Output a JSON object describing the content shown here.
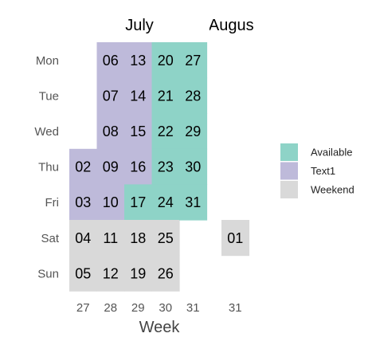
{
  "chart_data": {
    "type": "heatmap",
    "title": "",
    "xlabel": "Week",
    "ylabel": "",
    "months": [
      {
        "label": "July",
        "weeks": [
          27,
          28,
          29,
          30,
          31
        ]
      },
      {
        "label": "August",
        "weeks": [
          31
        ]
      }
    ],
    "weekdays": [
      "Mon",
      "Tue",
      "Wed",
      "Thu",
      "Fri",
      "Sat",
      "Sun"
    ],
    "categories": [
      {
        "name": "Available",
        "color": "#8ed3c7"
      },
      {
        "name": "Text1",
        "color": "#bebada"
      },
      {
        "name": "Weekend",
        "color": "#d9d9d9"
      }
    ],
    "cells": [
      {
        "month": 0,
        "week": 27,
        "day": "Thu",
        "label": "02",
        "category": "Text1"
      },
      {
        "month": 0,
        "week": 27,
        "day": "Fri",
        "label": "03",
        "category": "Text1"
      },
      {
        "month": 0,
        "week": 27,
        "day": "Sat",
        "label": "04",
        "category": "Weekend"
      },
      {
        "month": 0,
        "week": 27,
        "day": "Sun",
        "label": "05",
        "category": "Weekend"
      },
      {
        "month": 0,
        "week": 28,
        "day": "Mon",
        "label": "06",
        "category": "Text1"
      },
      {
        "month": 0,
        "week": 28,
        "day": "Tue",
        "label": "07",
        "category": "Text1"
      },
      {
        "month": 0,
        "week": 28,
        "day": "Wed",
        "label": "08",
        "category": "Text1"
      },
      {
        "month": 0,
        "week": 28,
        "day": "Thu",
        "label": "09",
        "category": "Text1"
      },
      {
        "month": 0,
        "week": 28,
        "day": "Fri",
        "label": "10",
        "category": "Text1"
      },
      {
        "month": 0,
        "week": 28,
        "day": "Sat",
        "label": "11",
        "category": "Weekend"
      },
      {
        "month": 0,
        "week": 28,
        "day": "Sun",
        "label": "12",
        "category": "Weekend"
      },
      {
        "month": 0,
        "week": 29,
        "day": "Mon",
        "label": "13",
        "category": "Text1"
      },
      {
        "month": 0,
        "week": 29,
        "day": "Tue",
        "label": "14",
        "category": "Text1"
      },
      {
        "month": 0,
        "week": 29,
        "day": "Wed",
        "label": "15",
        "category": "Text1"
      },
      {
        "month": 0,
        "week": 29,
        "day": "Thu",
        "label": "16",
        "category": "Text1"
      },
      {
        "month": 0,
        "week": 29,
        "day": "Fri",
        "label": "17",
        "category": "Available"
      },
      {
        "month": 0,
        "week": 29,
        "day": "Sat",
        "label": "18",
        "category": "Weekend"
      },
      {
        "month": 0,
        "week": 29,
        "day": "Sun",
        "label": "19",
        "category": "Weekend"
      },
      {
        "month": 0,
        "week": 30,
        "day": "Mon",
        "label": "20",
        "category": "Available"
      },
      {
        "month": 0,
        "week": 30,
        "day": "Tue",
        "label": "21",
        "category": "Available"
      },
      {
        "month": 0,
        "week": 30,
        "day": "Wed",
        "label": "22",
        "category": "Available"
      },
      {
        "month": 0,
        "week": 30,
        "day": "Thu",
        "label": "23",
        "category": "Available"
      },
      {
        "month": 0,
        "week": 30,
        "day": "Fri",
        "label": "24",
        "category": "Available"
      },
      {
        "month": 0,
        "week": 30,
        "day": "Sat",
        "label": "25",
        "category": "Weekend"
      },
      {
        "month": 0,
        "week": 30,
        "day": "Sun",
        "label": "26",
        "category": "Weekend"
      },
      {
        "month": 0,
        "week": 31,
        "day": "Mon",
        "label": "27",
        "category": "Available"
      },
      {
        "month": 0,
        "week": 31,
        "day": "Tue",
        "label": "28",
        "category": "Available"
      },
      {
        "month": 0,
        "week": 31,
        "day": "Wed",
        "label": "29",
        "category": "Available"
      },
      {
        "month": 0,
        "week": 31,
        "day": "Thu",
        "label": "30",
        "category": "Available"
      },
      {
        "month": 0,
        "week": 31,
        "day": "Fri",
        "label": "31",
        "category": "Available"
      },
      {
        "month": 1,
        "week": 31,
        "day": "Sat",
        "label": "01",
        "category": "Weekend"
      }
    ],
    "legend_position": "right"
  }
}
